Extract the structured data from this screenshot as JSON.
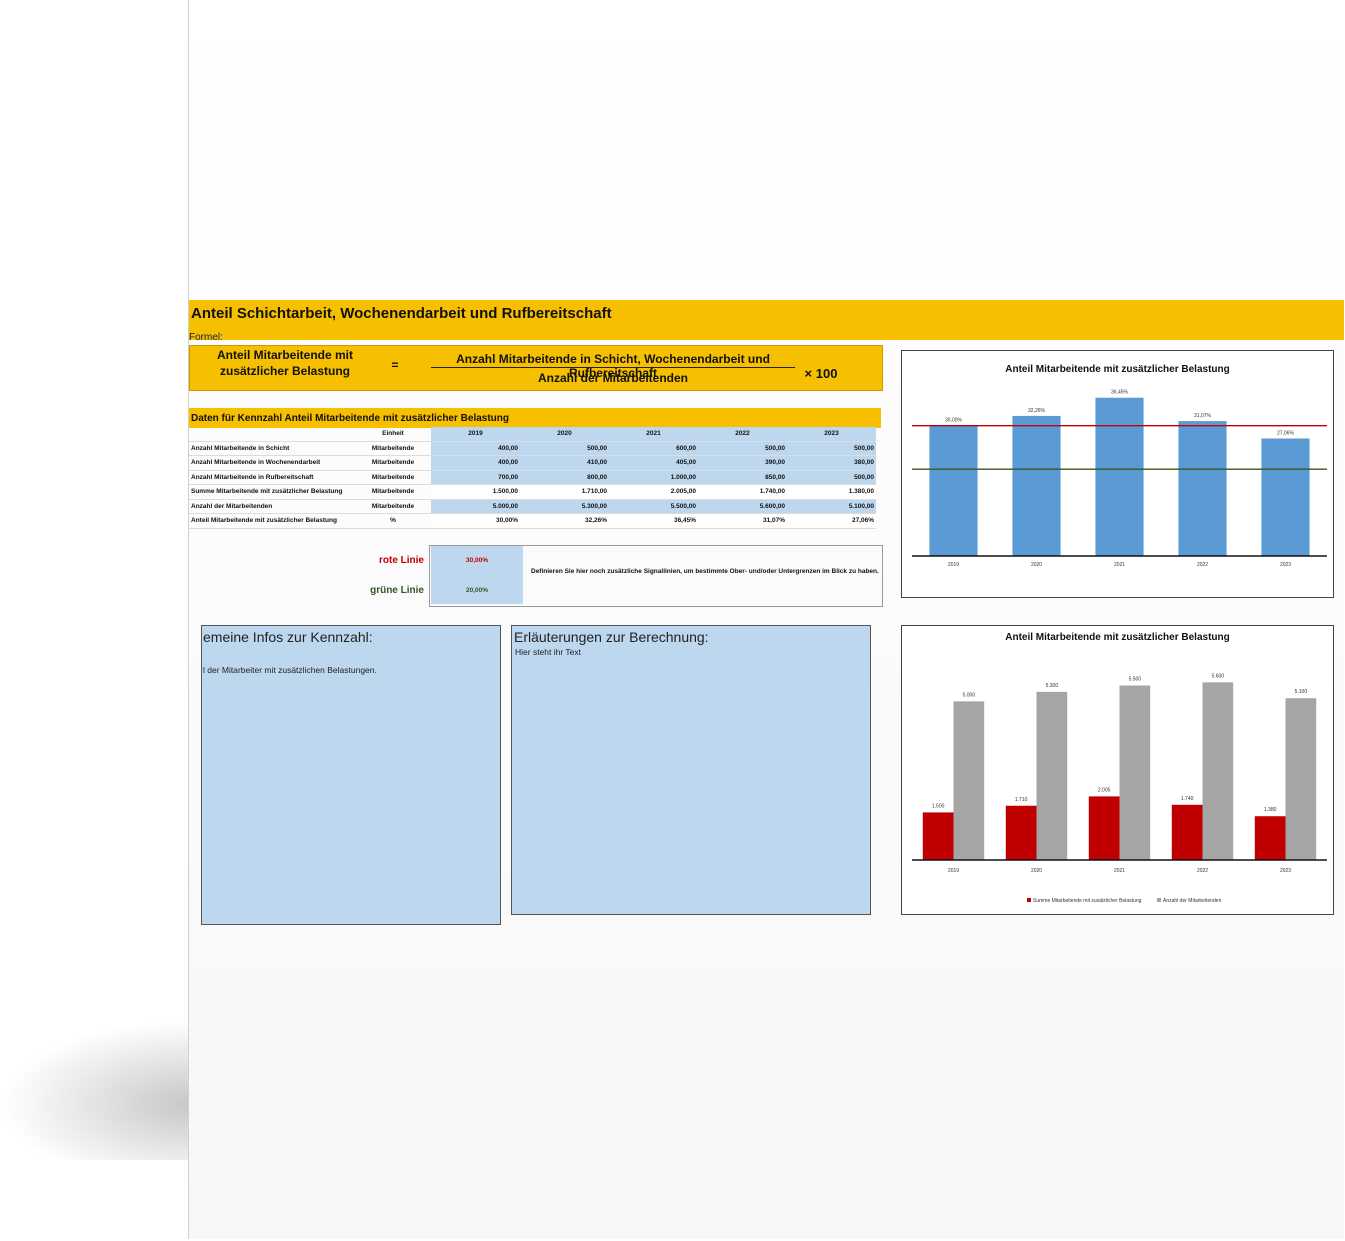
{
  "banner": {
    "title": "Anteil Schichtarbeit, Wochenendarbeit und Rufbereitschaft"
  },
  "formula": {
    "label": "Formel:",
    "left_line1": "Anteil Mitarbeitende mit",
    "left_line2": "zusätzlicher Belastung",
    "equals": "=",
    "numerator": "Anzahl Mitarbeitende in Schicht, Wochenendarbeit und Rufbereitschaft",
    "denominator": "Anzahl der Mitarbeitenden",
    "times": "× 100"
  },
  "data_section": {
    "title": "Daten für Kennzahl Anteil Mitarbeitende mit zusätzlicher Belastung",
    "unit_header": "Einheit",
    "years": [
      "2019",
      "2020",
      "2021",
      "2022",
      "2023"
    ],
    "rows": [
      {
        "label": "Anzahl Mitarbeitende in Schicht",
        "unit": "Mitarbeitende",
        "values": [
          "400,00",
          "500,00",
          "600,00",
          "500,00",
          "500,00"
        ]
      },
      {
        "label": "Anzahl Mitarbeitende in Wochenendarbeit",
        "unit": "Mitarbeitende",
        "values": [
          "400,00",
          "410,00",
          "405,00",
          "390,00",
          "380,00"
        ]
      },
      {
        "label": "Anzahl Mitarbeitende in Rufbereitschaft",
        "unit": "Mitarbeitende",
        "values": [
          "700,00",
          "800,00",
          "1.000,00",
          "850,00",
          "500,00"
        ]
      },
      {
        "label": "Summe Mitarbeitende mit zusätzlicher Belastung",
        "unit": "Mitarbeitende",
        "values": [
          "1.500,00",
          "1.710,00",
          "2.005,00",
          "1.740,00",
          "1.380,00"
        ]
      },
      {
        "label": "Anzahl der Mitarbeitenden",
        "unit": "Mitarbeitende",
        "values": [
          "5.000,00",
          "5.300,00",
          "5.500,00",
          "5.600,00",
          "5.100,00"
        ]
      },
      {
        "label": "Anteil Mitarbeitende mit zusätzlicher Belastung",
        "unit": "%",
        "values": [
          "30,00%",
          "32,26%",
          "36,45%",
          "31,07%",
          "27,06%"
        ]
      }
    ]
  },
  "signals": {
    "red_label": "rote Linie",
    "red_value": "30,00%",
    "green_label": "grüne Linie",
    "green_value": "20,00%",
    "description": "Definieren Sie hier noch zusätzliche Signallinien, um bestimmte Ober- und/oder Untergrenzen im Blick zu haben.",
    "red_color": "#c00000",
    "green_color": "#375623"
  },
  "info_boxes": {
    "general_title": "emeine Infos zur Kennzahl:",
    "general_text": "l der Mitarbeiter mit zusätzlichen Belastungen.",
    "calc_title": "Erläuterungen zur Berechnung:",
    "calc_text": "Hier steht ihr Text"
  },
  "chart_data": [
    {
      "type": "bar",
      "title": "Anteil Mitarbeitende mit zusätzlicher Belastung",
      "categories": [
        "2019",
        "2020",
        "2021",
        "2022",
        "2023"
      ],
      "values": [
        30.0,
        32.26,
        36.45,
        31.07,
        27.06
      ],
      "data_labels": [
        "30,00%",
        "32,26%",
        "36,45%",
        "31,07%",
        "27,06%"
      ],
      "bar_color": "#5b9bd5",
      "reference_lines": [
        {
          "value": 30.0,
          "color": "#c00000"
        },
        {
          "value": 20.0,
          "color": "#375623"
        }
      ],
      "ylim": [
        0,
        38
      ],
      "legend": "none"
    },
    {
      "type": "bar",
      "title": "Anteil Mitarbeitende mit zusätzlicher Belastung",
      "categories": [
        "2019",
        "2020",
        "2021",
        "2022",
        "2023"
      ],
      "series": [
        {
          "name": "Summe Mitarbeitende mit zusätzlicher Belastung",
          "values": [
            1500,
            1710,
            2005,
            1740,
            1380
          ],
          "labels": [
            "1.500",
            "1.710",
            "2.005",
            "1.740",
            "1.380"
          ],
          "color": "#c00000"
        },
        {
          "name": "Anzahl der Mitarbeitenden",
          "values": [
            5000,
            5300,
            5500,
            5600,
            5100
          ],
          "labels": [
            "5.000",
            "5.300",
            "5.500",
            "5.600",
            "5.100"
          ],
          "color": "#a5a5a5"
        }
      ],
      "ylim": [
        0,
        5800
      ],
      "legend": "bottom"
    }
  ]
}
